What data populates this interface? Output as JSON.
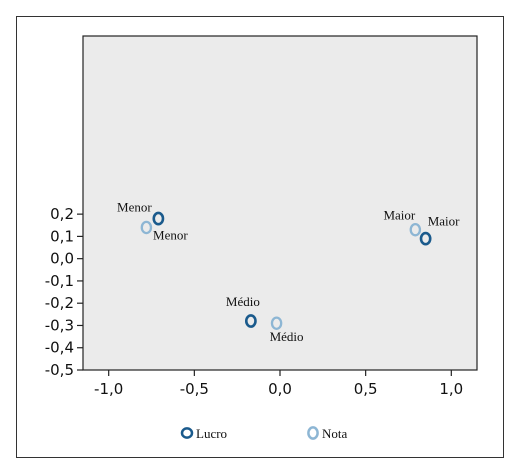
{
  "chart_data": {
    "type": "scatter",
    "title": "",
    "xlabel": "",
    "ylabel": "",
    "xlim": [
      -1.15,
      1.15
    ],
    "ylim": [
      -0.5,
      1.0
    ],
    "x_ticks": [
      "-1,0",
      "-0,5",
      "0,0",
      "0,5",
      "1,0"
    ],
    "x_tick_values": [
      -1.0,
      -0.5,
      0.0,
      0.5,
      1.0
    ],
    "y_ticks": [
      "0,2",
      "0,1",
      "0,0",
      "-0,1",
      "-0,2",
      "-0,3",
      "-0,4",
      "-0,5"
    ],
    "y_tick_values": [
      0.2,
      0.1,
      0.0,
      -0.1,
      -0.2,
      -0.3,
      -0.4,
      -0.5
    ],
    "grid": false,
    "legend_position": "bottom",
    "series": [
      {
        "name": "Lucro",
        "color": "#1a5a8c",
        "points": [
          {
            "x": -0.71,
            "y": 0.18,
            "label": "Menor"
          },
          {
            "x": -0.17,
            "y": -0.28,
            "label": "Médio"
          },
          {
            "x": 0.85,
            "y": 0.09,
            "label": "Maior"
          }
        ]
      },
      {
        "name": "Nota",
        "color": "#8db6d4",
        "points": [
          {
            "x": -0.78,
            "y": 0.14,
            "label": "Menor"
          },
          {
            "x": -0.02,
            "y": -0.29,
            "label": "Médio"
          },
          {
            "x": 0.79,
            "y": 0.13,
            "label": "Maior"
          }
        ]
      }
    ]
  }
}
